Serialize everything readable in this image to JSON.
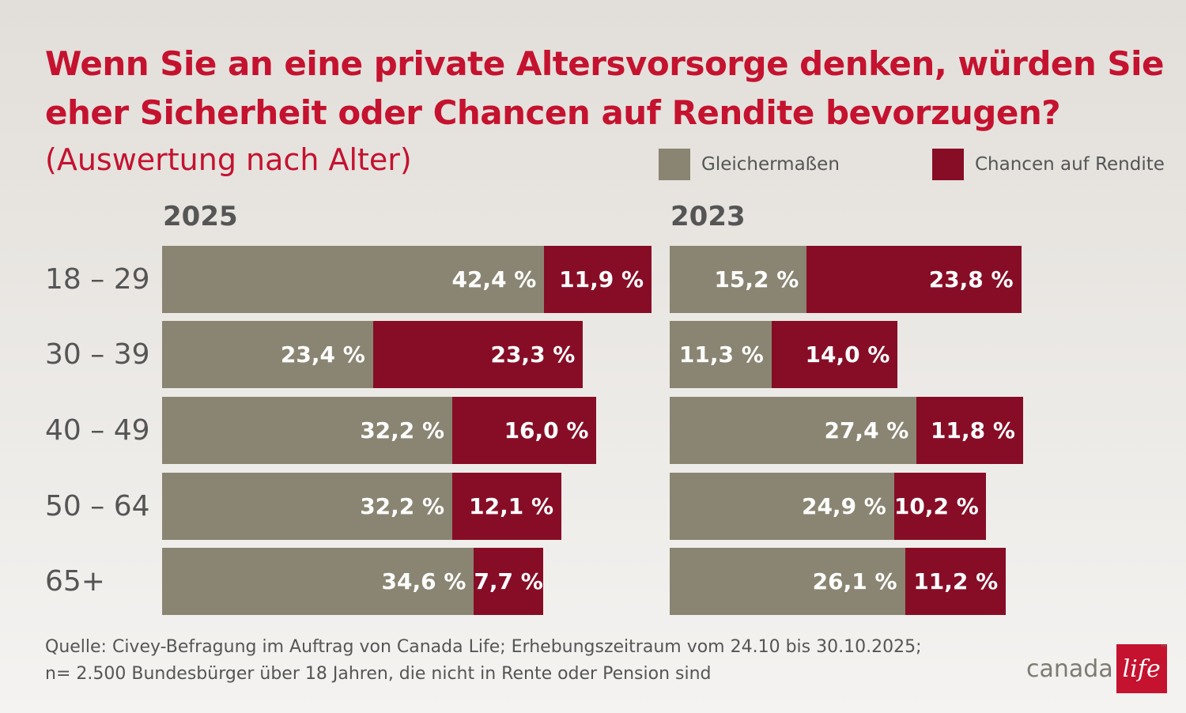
{
  "chart_data": {
    "type": "bar",
    "stacked": true,
    "orientation": "horizontal",
    "title": "Wenn Sie an eine private Altersvorsorge denken, würden Sie eher Sicherheit oder Chancen auf Rendite bevorzugen?",
    "subtitle": "(Auswertung nach Alter)",
    "categories": [
      "18 – 29",
      "30 – 39",
      "40 – 49",
      "50 – 64",
      "65+"
    ],
    "legend": [
      "Gleichermaßen",
      "Chancen auf Rendite"
    ],
    "colors": {
      "Gleichermaßen": "#8a8572",
      "Chancen auf Rendite": "#870d26"
    },
    "panels": [
      {
        "year": "2025",
        "series": [
          {
            "name": "Gleichermaßen",
            "values": [
              42.4,
              23.4,
              32.2,
              32.2,
              34.6
            ],
            "labels": [
              "42,4 %",
              "23,4 %",
              "32,2 %",
              "32,2 %",
              "34,6 %"
            ]
          },
          {
            "name": "Chancen auf Rendite",
            "values": [
              11.9,
              23.3,
              16.0,
              12.1,
              7.7
            ],
            "labels": [
              "11,9 %",
              "23,3 %",
              "16,0 %",
              "12,1 %",
              "7,7 %"
            ]
          }
        ]
      },
      {
        "year": "2023",
        "series": [
          {
            "name": "Gleichermaßen",
            "values": [
              15.2,
              11.3,
              27.4,
              24.9,
              26.1
            ],
            "labels": [
              "15,2 %",
              "11,3 %",
              "27,4 %",
              "24,9 %",
              "26,1 %"
            ]
          },
          {
            "name": "Chancen auf Rendite",
            "values": [
              23.8,
              14.0,
              11.8,
              10.2,
              11.2
            ],
            "labels": [
              "23,8 %",
              "14,0 %",
              "11,8 %",
              "10,2 %",
              "11,2 %"
            ]
          }
        ]
      }
    ]
  },
  "source": {
    "line1": "Quelle: Civey-Befragung im Auftrag von Canada Life; Erhebungszeitraum vom 24.10 bis 30.10.2025;",
    "line2": "n= 2.500 Bundesbürger über 18 Jahren, die nicht in Rente oder Pension sind"
  },
  "logo": {
    "text": "canada",
    "mark": "life",
    "tm": "™"
  }
}
